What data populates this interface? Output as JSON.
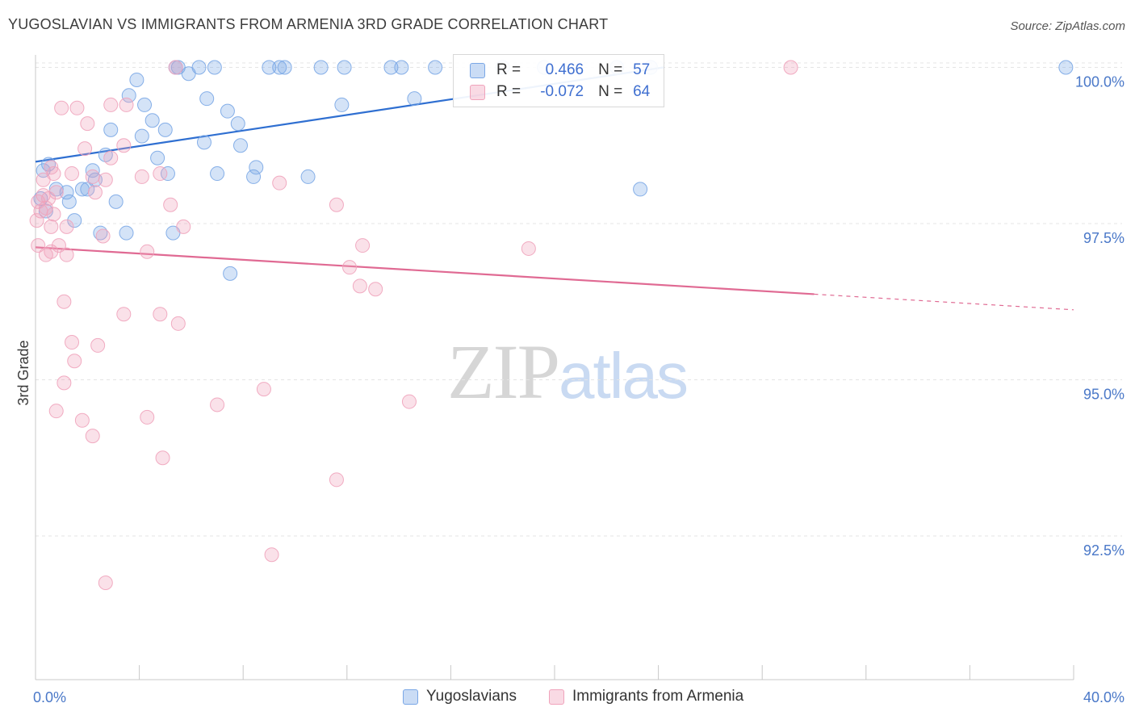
{
  "header": {
    "title": "YUGOSLAVIAN VS IMMIGRANTS FROM ARMENIA 3RD GRADE CORRELATION CHART",
    "source": "Source: ZipAtlas.com"
  },
  "watermark": {
    "zip": "ZIP",
    "atlas": "atlas"
  },
  "stats": {
    "series1": {
      "r_label": "R =",
      "r_value": "0.466",
      "n_label": "N =",
      "n_value": "57",
      "color": "#7aa7e6"
    },
    "series2": {
      "r_label": "R =",
      "r_value": "-0.072",
      "n_label": "N =",
      "n_value": "64",
      "color": "#f0a3bb"
    }
  },
  "legend": {
    "items": [
      {
        "label": "Yugoslavians",
        "color": "#7aa7e6"
      },
      {
        "label": "Immigrants from Armenia",
        "color": "#f0a3bb"
      }
    ]
  },
  "chart_data": {
    "type": "scatter",
    "title": "YUGOSLAVIAN VS IMMIGRANTS FROM ARMENIA 3RD GRADE CORRELATION CHART",
    "xlabel": "",
    "ylabel": "3rd Grade",
    "xlim": [
      0,
      40
    ],
    "ylim": [
      90.2,
      100.2
    ],
    "x_ticks": [
      {
        "value": 0,
        "label": "0.0%"
      },
      {
        "value": 40,
        "label": "40.0%"
      }
    ],
    "x_minor_ticks": [
      0,
      4,
      8,
      12,
      16,
      20,
      24,
      28,
      32,
      36,
      40
    ],
    "y_ticks": [
      {
        "value": 100,
        "label": "100.0%"
      },
      {
        "value": 97.5,
        "label": "97.5%"
      },
      {
        "value": 95,
        "label": "95.0%"
      },
      {
        "value": 92.5,
        "label": "92.5%"
      }
    ],
    "grid": true,
    "legend_position": "bottom-center",
    "series": [
      {
        "name": "Yugoslavians",
        "color": "#7aa7e6",
        "line_color": "#2f6fd1",
        "trend": {
          "x0": 0,
          "y0": 98.49,
          "x1": 24.2,
          "y1": 100.0,
          "dash_to_x": null
        },
        "points": [
          [
            5.4,
            100.0
          ],
          [
            6.3,
            100.0
          ],
          [
            6.9,
            100.0
          ],
          [
            9.0,
            100.0
          ],
          [
            9.4,
            100.0
          ],
          [
            9.6,
            100.0
          ],
          [
            11.0,
            100.0
          ],
          [
            11.9,
            100.0
          ],
          [
            13.7,
            100.0
          ],
          [
            14.1,
            100.0
          ],
          [
            15.4,
            100.0
          ],
          [
            18.0,
            100.0
          ],
          [
            19.6,
            100.0
          ],
          [
            23.7,
            100.0
          ],
          [
            39.7,
            100.0
          ],
          [
            5.5,
            100.0
          ],
          [
            22.4,
            100.0
          ],
          [
            3.9,
            99.8
          ],
          [
            5.9,
            99.9
          ],
          [
            3.6,
            99.55
          ],
          [
            4.2,
            99.4
          ],
          [
            6.6,
            99.5
          ],
          [
            7.4,
            99.3
          ],
          [
            11.8,
            99.4
          ],
          [
            14.6,
            99.5
          ],
          [
            4.5,
            99.15
          ],
          [
            7.8,
            99.1
          ],
          [
            5.0,
            99.0
          ],
          [
            2.9,
            99.0
          ],
          [
            4.1,
            98.9
          ],
          [
            6.5,
            98.8
          ],
          [
            7.9,
            98.75
          ],
          [
            2.7,
            98.6
          ],
          [
            4.7,
            98.55
          ],
          [
            0.5,
            98.45
          ],
          [
            0.3,
            98.35
          ],
          [
            2.2,
            98.35
          ],
          [
            5.1,
            98.3
          ],
          [
            7.0,
            98.3
          ],
          [
            8.5,
            98.4
          ],
          [
            8.4,
            98.25
          ],
          [
            10.5,
            98.25
          ],
          [
            2.3,
            98.2
          ],
          [
            1.8,
            98.05
          ],
          [
            2.0,
            98.05
          ],
          [
            0.8,
            98.05
          ],
          [
            1.2,
            98.0
          ],
          [
            1.3,
            97.85
          ],
          [
            3.1,
            97.85
          ],
          [
            1.5,
            97.55
          ],
          [
            3.5,
            97.35
          ],
          [
            2.5,
            97.35
          ],
          [
            5.3,
            97.35
          ],
          [
            7.5,
            96.7
          ],
          [
            23.3,
            98.05
          ],
          [
            0.2,
            97.9
          ],
          [
            0.4,
            97.7
          ]
        ]
      },
      {
        "name": "Immigrants from Armenia",
        "color": "#f0a3bb",
        "line_color": "#e06a93",
        "trend": {
          "x0": 0,
          "y0": 97.12,
          "x1": 30.0,
          "y1": 96.37,
          "dash_to_x": 40
        },
        "points": [
          [
            5.4,
            100.0
          ],
          [
            29.1,
            100.0
          ],
          [
            1.0,
            99.35
          ],
          [
            1.6,
            99.35
          ],
          [
            2.9,
            99.4
          ],
          [
            3.5,
            99.4
          ],
          [
            2.0,
            99.1
          ],
          [
            3.4,
            98.75
          ],
          [
            1.9,
            98.7
          ],
          [
            2.9,
            98.55
          ],
          [
            0.6,
            98.4
          ],
          [
            0.7,
            98.3
          ],
          [
            0.3,
            98.2
          ],
          [
            1.4,
            98.3
          ],
          [
            2.2,
            98.25
          ],
          [
            2.7,
            98.2
          ],
          [
            4.1,
            98.25
          ],
          [
            4.8,
            98.3
          ],
          [
            9.4,
            98.15
          ],
          [
            2.3,
            98.0
          ],
          [
            0.8,
            98.0
          ],
          [
            0.3,
            97.95
          ],
          [
            0.5,
            97.9
          ],
          [
            0.1,
            97.85
          ],
          [
            5.2,
            97.8
          ],
          [
            11.6,
            97.8
          ],
          [
            0.4,
            97.75
          ],
          [
            0.2,
            97.7
          ],
          [
            0.7,
            97.65
          ],
          [
            1.2,
            97.45
          ],
          [
            5.7,
            97.45
          ],
          [
            2.6,
            97.3
          ],
          [
            0.1,
            97.15
          ],
          [
            0.9,
            97.15
          ],
          [
            12.6,
            97.15
          ],
          [
            0.4,
            97.0
          ],
          [
            0.6,
            97.05
          ],
          [
            1.2,
            97.0
          ],
          [
            4.3,
            97.05
          ],
          [
            19.0,
            97.1
          ],
          [
            12.1,
            96.8
          ],
          [
            12.5,
            96.5
          ],
          [
            13.1,
            96.45
          ],
          [
            1.1,
            96.25
          ],
          [
            3.4,
            96.05
          ],
          [
            4.8,
            96.05
          ],
          [
            5.5,
            95.9
          ],
          [
            1.4,
            95.6
          ],
          [
            2.4,
            95.55
          ],
          [
            1.5,
            95.3
          ],
          [
            1.1,
            94.95
          ],
          [
            8.8,
            94.85
          ],
          [
            7.0,
            94.6
          ],
          [
            14.4,
            94.65
          ],
          [
            0.8,
            94.5
          ],
          [
            1.8,
            94.35
          ],
          [
            4.3,
            94.4
          ],
          [
            2.2,
            94.1
          ],
          [
            4.9,
            93.75
          ],
          [
            11.6,
            93.4
          ],
          [
            9.1,
            92.2
          ],
          [
            2.7,
            91.75
          ],
          [
            0.05,
            97.55
          ],
          [
            0.6,
            97.45
          ]
        ]
      }
    ]
  }
}
